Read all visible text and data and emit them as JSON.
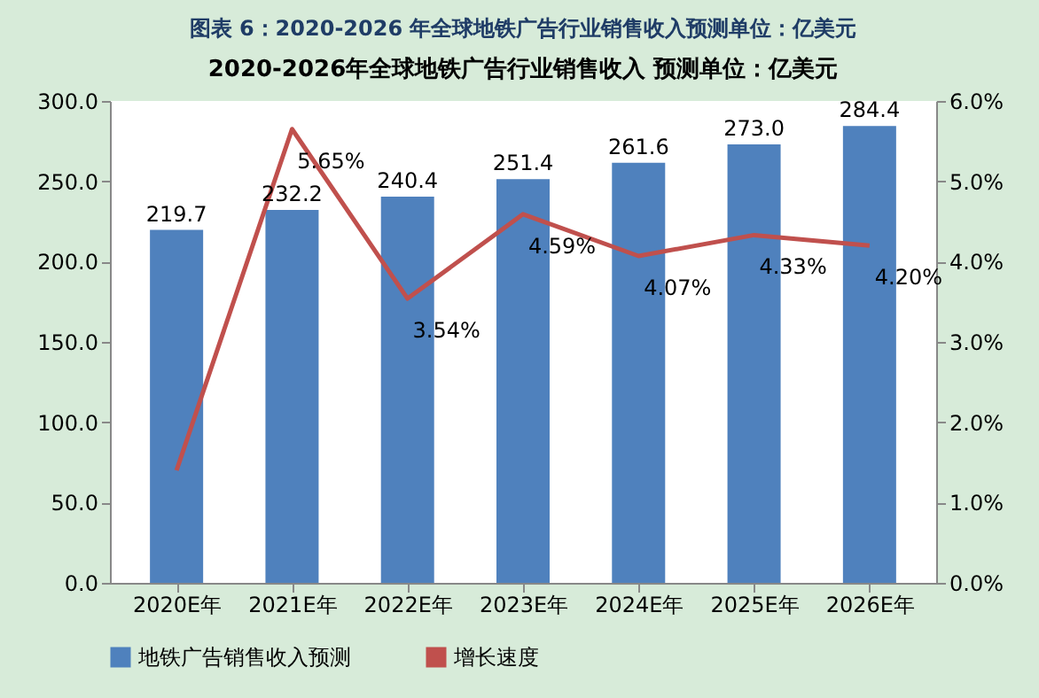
{
  "chart_data": {
    "type": "bar",
    "title": "图表 6：2020-2026 年全球地铁广告行业销售收入预测单位：亿美元",
    "subtitle": "2020-2026年全球地铁广告行业销售收入 预测单位：亿美元",
    "categories": [
      "2020E年",
      "2021E年",
      "2022E年",
      "2023E年",
      "2024E年",
      "2025E年",
      "2026E年"
    ],
    "series": [
      {
        "name": "地铁广告销售收入预测",
        "color": "#4f81bd",
        "values": [
          219.7,
          232.2,
          240.4,
          251.4,
          261.6,
          273.0,
          284.4
        ],
        "value_labels": [
          "219.7",
          "232.2",
          "240.4",
          "251.4",
          "261.6",
          "273.0",
          "284.4"
        ]
      },
      {
        "name": "增长速度",
        "type": "line",
        "axis": "y2",
        "color": "#c0504d",
        "values": [
          1.4,
          5.65,
          3.54,
          4.59,
          4.07,
          4.33,
          4.2
        ],
        "value_labels": [
          null,
          "5.65%",
          "3.54%",
          "4.59%",
          "4.07%",
          "4.33%",
          "4.20%"
        ]
      }
    ],
    "ylim": [
      0,
      300
    ],
    "yticks": [
      {
        "value": 0,
        "label": "0.0"
      },
      {
        "value": 50,
        "label": "50.0"
      },
      {
        "value": 100,
        "label": "100.0"
      },
      {
        "value": 150,
        "label": "150.0"
      },
      {
        "value": 200,
        "label": "200.0"
      },
      {
        "value": 250,
        "label": "250.0"
      },
      {
        "value": 300,
        "label": "300.0"
      }
    ],
    "y2lim": [
      0,
      6
    ],
    "y2ticks": [
      {
        "value": 0,
        "label": "0.0%"
      },
      {
        "value": 1,
        "label": "1.0%"
      },
      {
        "value": 2,
        "label": "2.0%"
      },
      {
        "value": 3,
        "label": "3.0%"
      },
      {
        "value": 4,
        "label": "4.0%"
      },
      {
        "value": 5,
        "label": "5.0%"
      },
      {
        "value": 6,
        "label": "6.0%"
      }
    ],
    "grid": false,
    "legend": "bottom",
    "marker": "none",
    "line_style": "solid"
  }
}
